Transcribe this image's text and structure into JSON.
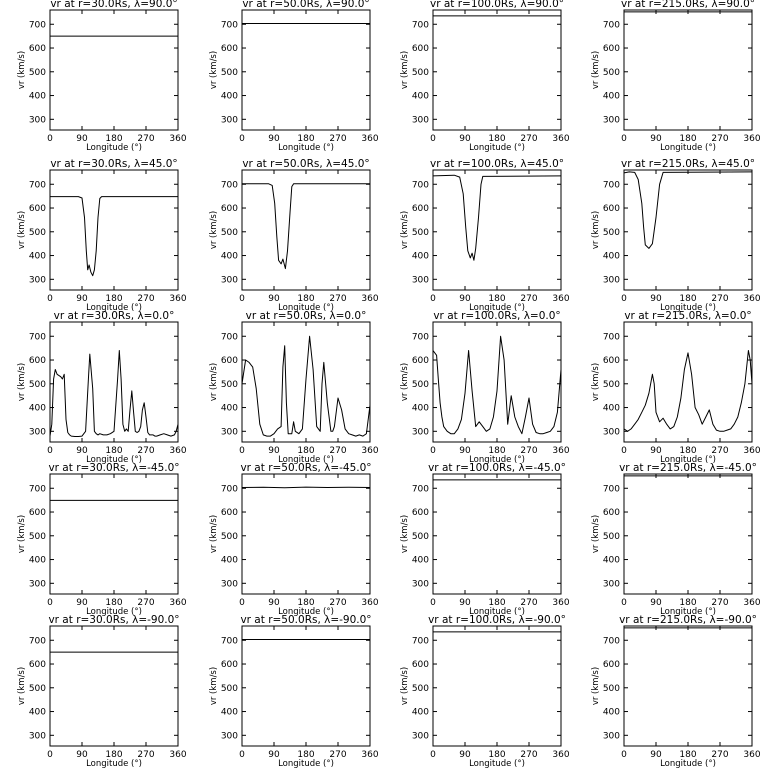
{
  "chart_data": {
    "type": "line",
    "layout": "grid 5x4",
    "xlabel": "Longitude (°)",
    "ylabel": "vr (km/s)",
    "xlim": [
      0,
      360
    ],
    "ylim": [
      255,
      760
    ],
    "xticks": [
      0,
      90,
      180,
      270,
      360
    ],
    "yticks": [
      300,
      400,
      500,
      600,
      700
    ],
    "panels": [
      {
        "title": "vr at r=30.0Rs, λ=90.0°",
        "x": [
          0,
          360
        ],
        "y": [
          650,
          650
        ]
      },
      {
        "title": "vr at r=50.0Rs, λ=90.0°",
        "x": [
          0,
          360
        ],
        "y": [
          703,
          703
        ]
      },
      {
        "title": "vr at r=100.0Rs, λ=90.0°",
        "x": [
          0,
          360
        ],
        "y": [
          735,
          735
        ]
      },
      {
        "title": "vr at r=215.0Rs, λ=90.0°",
        "x": [
          0,
          360
        ],
        "y": [
          752,
          752
        ]
      },
      {
        "title": "vr at r=30.0Rs, λ=45.0°",
        "x": [
          0,
          80,
          90,
          97,
          102,
          106,
          110,
          115,
          120,
          125,
          130,
          135,
          140,
          145,
          360
        ],
        "y": [
          648,
          648,
          642,
          560,
          420,
          340,
          360,
          330,
          315,
          340,
          420,
          560,
          640,
          648,
          648
        ]
      },
      {
        "title": "vr at r=50.0Rs, λ=45.0°",
        "x": [
          0,
          75,
          85,
          92,
          98,
          103,
          110,
          115,
          122,
          128,
          135,
          140,
          145,
          360
        ],
        "y": [
          702,
          702,
          695,
          620,
          480,
          380,
          365,
          385,
          345,
          420,
          580,
          690,
          702,
          702
        ]
      },
      {
        "title": "vr at r=100.0Rs, λ=45.0°",
        "x": [
          0,
          60,
          75,
          85,
          92,
          98,
          105,
          110,
          115,
          120,
          128,
          135,
          140,
          360
        ],
        "y": [
          735,
          738,
          730,
          660,
          520,
          420,
          390,
          410,
          380,
          430,
          560,
          700,
          733,
          735
        ]
      },
      {
        "title": "vr at r=215.0Rs, λ=45.0°",
        "x": [
          0,
          15,
          30,
          40,
          50,
          55,
          60,
          70,
          80,
          90,
          100,
          110,
          360
        ],
        "y": [
          748,
          752,
          750,
          720,
          620,
          520,
          445,
          430,
          450,
          560,
          700,
          750,
          752
        ]
      },
      {
        "title": "vr at r=30.0Rs, λ=0.0°",
        "x": [
          0,
          5,
          10,
          15,
          20,
          30,
          35,
          40,
          45,
          50,
          55,
          60,
          70,
          80,
          90,
          100,
          108,
          112,
          120,
          125,
          130,
          135,
          140,
          150,
          160,
          170,
          180,
          190,
          195,
          200,
          205,
          210,
          215,
          220,
          225,
          230,
          235,
          240,
          245,
          250,
          255,
          260,
          265,
          270,
          275,
          280,
          285,
          290,
          295,
          300,
          310,
          320,
          330,
          340,
          350,
          355,
          360
        ],
        "y": [
          280,
          330,
          520,
          560,
          540,
          530,
          520,
          540,
          350,
          295,
          285,
          280,
          278,
          278,
          280,
          300,
          520,
          625,
          480,
          300,
          290,
          285,
          290,
          285,
          285,
          290,
          300,
          520,
          640,
          520,
          330,
          300,
          310,
          300,
          390,
          470,
          380,
          300,
          295,
          300,
          320,
          390,
          420,
          360,
          295,
          285,
          285,
          285,
          280,
          280,
          285,
          290,
          285,
          280,
          285,
          300,
          330
        ]
      },
      {
        "title": "vr at r=50.0Rs, λ=0.0°",
        "x": [
          0,
          10,
          20,
          30,
          40,
          50,
          60,
          70,
          80,
          90,
          100,
          110,
          115,
          120,
          125,
          130,
          140,
          145,
          150,
          160,
          170,
          180,
          190,
          200,
          210,
          220,
          225,
          230,
          240,
          250,
          255,
          260,
          270,
          280,
          290,
          300,
          310,
          320,
          330,
          340,
          350,
          360
        ],
        "y": [
          500,
          600,
          590,
          570,
          480,
          330,
          285,
          280,
          280,
          290,
          310,
          320,
          570,
          660,
          420,
          290,
          290,
          340,
          300,
          290,
          310,
          520,
          700,
          560,
          320,
          300,
          500,
          590,
          420,
          300,
          300,
          320,
          440,
          390,
          310,
          290,
          285,
          280,
          285,
          280,
          290,
          410
        ]
      },
      {
        "title": "vr at r=100.0Rs, λ=0.0°",
        "x": [
          0,
          10,
          15,
          20,
          25,
          30,
          40,
          50,
          60,
          70,
          80,
          90,
          100,
          110,
          120,
          130,
          140,
          150,
          160,
          170,
          180,
          190,
          200,
          210,
          220,
          230,
          240,
          250,
          260,
          270,
          280,
          290,
          300,
          310,
          320,
          330,
          340,
          350,
          360
        ],
        "y": [
          640,
          620,
          520,
          420,
          360,
          320,
          300,
          290,
          290,
          310,
          350,
          460,
          640,
          470,
          320,
          340,
          320,
          300,
          310,
          360,
          470,
          700,
          600,
          330,
          450,
          360,
          320,
          290,
          360,
          440,
          330,
          295,
          290,
          290,
          295,
          300,
          320,
          380,
          560
        ]
      },
      {
        "title": "vr at r=215.0Rs, λ=0.0°",
        "x": [
          0,
          10,
          20,
          30,
          40,
          50,
          60,
          70,
          80,
          85,
          90,
          100,
          110,
          120,
          130,
          140,
          150,
          160,
          170,
          180,
          190,
          200,
          210,
          220,
          230,
          240,
          250,
          260,
          270,
          280,
          290,
          300,
          310,
          320,
          330,
          340,
          350,
          355,
          360
        ],
        "y": [
          310,
          300,
          310,
          330,
          350,
          380,
          410,
          460,
          540,
          500,
          380,
          340,
          355,
          330,
          310,
          320,
          360,
          440,
          560,
          630,
          540,
          400,
          370,
          330,
          360,
          390,
          330,
          305,
          300,
          300,
          305,
          310,
          330,
          360,
          420,
          500,
          640,
          600,
          500
        ]
      },
      {
        "title": "vr at r=30.0Rs, λ=-45.0°",
        "x": [
          0,
          360
        ],
        "y": [
          649,
          649
        ]
      },
      {
        "title": "vr at r=50.0Rs, λ=-45.0°",
        "x": [
          0,
          60,
          120,
          180,
          240,
          300,
          360
        ],
        "y": [
          703,
          704,
          702,
          705,
          703,
          704,
          703
        ]
      },
      {
        "title": "vr at r=100.0Rs, λ=-45.0°",
        "x": [
          0,
          360
        ],
        "y": [
          735,
          735
        ]
      },
      {
        "title": "vr at r=215.0Rs, λ=-45.0°",
        "x": [
          0,
          360
        ],
        "y": [
          752,
          752
        ]
      },
      {
        "title": "vr at r=30.0Rs, λ=-90.0°",
        "x": [
          0,
          360
        ],
        "y": [
          650,
          650
        ]
      },
      {
        "title": "vr at r=50.0Rs, λ=-90.0°",
        "x": [
          0,
          360
        ],
        "y": [
          703,
          703
        ]
      },
      {
        "title": "vr at r=100.0Rs, λ=-90.0°",
        "x": [
          0,
          360
        ],
        "y": [
          735,
          735
        ]
      },
      {
        "title": "vr at r=215.0Rs, λ=-90.0°",
        "x": [
          0,
          360
        ],
        "y": [
          752,
          752
        ]
      }
    ]
  }
}
